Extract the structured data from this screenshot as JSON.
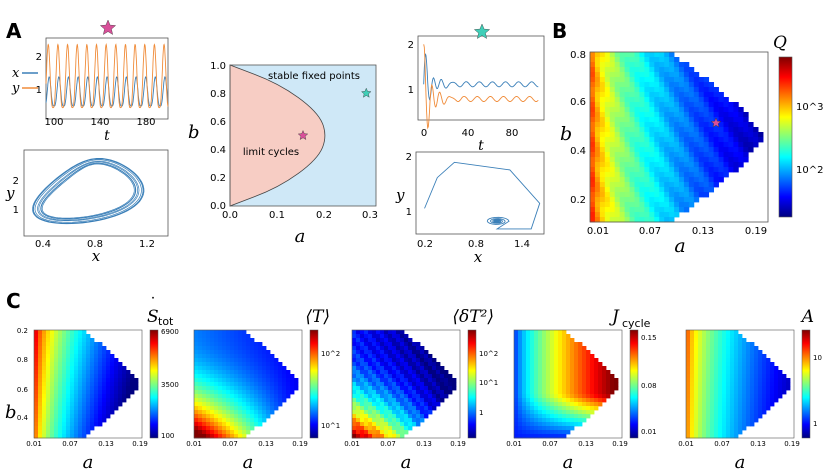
{
  "panel_labels": {
    "A": "A",
    "B": "B",
    "C": "C"
  },
  "colors": {
    "x_series": "#3a7fb8",
    "y_series": "#f08c3a",
    "limit_region": "#f7cdc4",
    "stable_region": "#cfe8f7",
    "magenta_star": "#d9509a",
    "teal_star": "#3fcfb8"
  },
  "chart_data": [
    {
      "id": "A-timeseries-limit",
      "type": "line",
      "xlabel": "t",
      "xticks": [
        "100",
        "140",
        "180"
      ],
      "yticks": [
        "1",
        "2"
      ],
      "legend": [
        "x",
        "y"
      ],
      "xlim": [
        95,
        205
      ],
      "ylim": [
        0,
        2.5
      ],
      "series": [
        {
          "name": "x",
          "description": "oscillation",
          "period": 8.7,
          "min": 0.4,
          "max": 1.3
        },
        {
          "name": "y",
          "description": "oscillation",
          "period": 8.7,
          "min": 0.35,
          "max": 2.3
        }
      ],
      "marker": "magenta-star"
    },
    {
      "id": "A-phase-limit",
      "type": "line",
      "xlabel": "x",
      "ylabel": "y",
      "xticks": [
        "0.4",
        "0.8",
        "1.2"
      ],
      "yticks": [
        "1",
        "2"
      ],
      "xlim": [
        0.2,
        1.5
      ],
      "ylim": [
        0.3,
        2.5
      ],
      "description": "limit cycle loop centered near x=0.8, y=1.4"
    },
    {
      "id": "A-phase-diagram",
      "type": "area",
      "xlabel": "a",
      "ylabel": "b",
      "xticks": [
        "0.0",
        "0.1",
        "0.2",
        "0.3"
      ],
      "yticks": [
        "0.0",
        "0.2",
        "0.4",
        "0.6",
        "0.8",
        "1.0"
      ],
      "xlim": [
        0,
        0.3
      ],
      "ylim": [
        0,
        1.0
      ],
      "regions": [
        {
          "name": "limit cycles",
          "label": "limit cycles"
        },
        {
          "name": "stable fixed points",
          "label": "stable fixed points"
        }
      ],
      "boundary": [
        [
          0.0,
          1.0
        ],
        [
          0.1,
          0.87
        ],
        [
          0.18,
          0.67
        ],
        [
          0.2,
          0.5
        ],
        [
          0.18,
          0.33
        ],
        [
          0.1,
          0.13
        ],
        [
          0.0,
          0.0
        ]
      ],
      "points": [
        {
          "name": "limit-cycle-point",
          "a": 0.15,
          "b": 0.5,
          "marker": "magenta-star"
        },
        {
          "name": "fixed-point-point",
          "a": 0.28,
          "b": 0.8,
          "marker": "teal-star"
        }
      ]
    },
    {
      "id": "A-timeseries-stable",
      "type": "line",
      "xlabel": "t",
      "xticks": [
        "0",
        "40",
        "80"
      ],
      "yticks": [
        "1",
        "2"
      ],
      "xlim": [
        -5,
        105
      ],
      "ylim": [
        0.2,
        2.2
      ],
      "series": [
        {
          "name": "x",
          "steady": 1.05
        },
        {
          "name": "y",
          "steady": 0.7
        }
      ],
      "marker": "teal-star"
    },
    {
      "id": "A-phase-stable",
      "type": "line",
      "xlabel": "x",
      "ylabel": "y",
      "xticks": [
        "0.2",
        "0.8",
        "1.4"
      ],
      "yticks": [
        "1",
        "2"
      ],
      "xlim": [
        0.1,
        1.6
      ],
      "ylim": [
        0.5,
        2.1
      ],
      "description": "spiral into fixed point near x=1.05, y=0.75"
    },
    {
      "id": "B-heatmap-Q",
      "type": "heatmap",
      "xlabel": "a",
      "ylabel": "b",
      "xticks": [
        "0.01",
        "0.07",
        "0.13",
        "0.19"
      ],
      "yticks": [
        "0.2",
        "0.4",
        "0.6",
        "0.8"
      ],
      "colorbar_label": "Q",
      "colorbar_ticks": [
        "10^2",
        "10^3"
      ],
      "colorbar_scale": "log",
      "star": {
        "a": 0.15,
        "b": 0.5
      }
    },
    {
      "id": "C-Stot",
      "type": "heatmap",
      "title_main": "S",
      "title_dot": "˙",
      "title_sub": "tot",
      "xlabel": "a",
      "ylabel": "b",
      "xticks": [
        "0.01",
        "0.07",
        "0.13",
        "0.19"
      ],
      "yticks": [
        "0.2",
        "0.4",
        "0.6",
        "0.8"
      ],
      "colorbar_ticks": [
        "6900",
        "3500",
        "100"
      ],
      "colorbar_scale": "linear"
    },
    {
      "id": "C-T",
      "type": "heatmap",
      "title": "⟨T⟩",
      "xlabel": "a",
      "xticks": [
        "0.01",
        "0.07",
        "0.13",
        "0.19"
      ],
      "colorbar_ticks": [
        "10^2",
        "10^1"
      ],
      "colorbar_scale": "log"
    },
    {
      "id": "C-dT2",
      "type": "heatmap",
      "title": "⟨δT²⟩",
      "xlabel": "a",
      "xticks": [
        "0.01",
        "0.07",
        "0.13",
        "0.19"
      ],
      "colorbar_ticks": [
        "10^2",
        "10^1",
        "1"
      ],
      "colorbar_scale": "log"
    },
    {
      "id": "C-Jcycle",
      "type": "heatmap",
      "title_main": "J",
      "title_sub": "cycle",
      "xlabel": "a",
      "xticks": [
        "0.01",
        "0.07",
        "0.13",
        "0.19"
      ],
      "colorbar_ticks": [
        "0.15",
        "0.08",
        "0.01"
      ],
      "colorbar_scale": "linear"
    },
    {
      "id": "C-A",
      "type": "heatmap",
      "title": "A",
      "xlabel": "a",
      "xticks": [
        "0.01",
        "0.07",
        "0.13",
        "0.19"
      ],
      "colorbar_ticks": [
        "10",
        "1"
      ],
      "colorbar_scale": "log"
    }
  ]
}
